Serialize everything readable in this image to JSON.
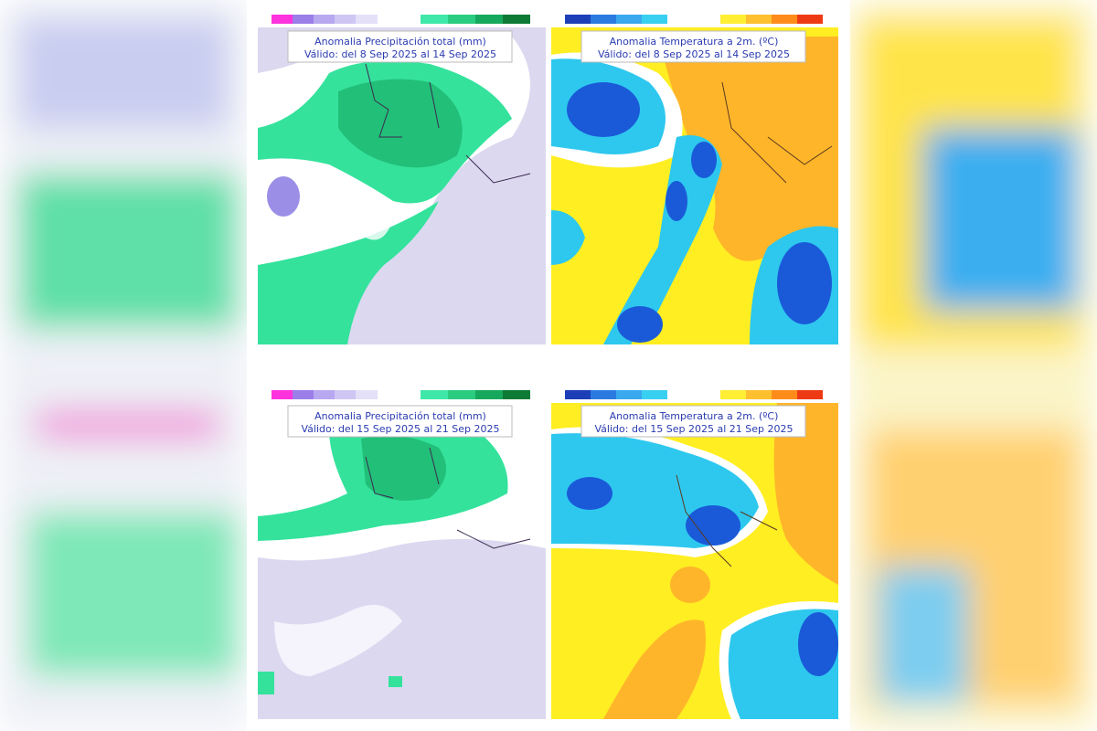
{
  "panels": [
    {
      "title": "Anomalia Precipitación total (mm)",
      "subtitle": "Válido: del 8 Sep 2025 al 14 Sep 2025"
    },
    {
      "title": "Anomalia Temperatura a 2m. (ºC)",
      "subtitle": "Válido: del 8 Sep 2025 al 14 Sep 2025"
    },
    {
      "title": "Anomalia Precipitación total (mm)",
      "subtitle": "Válido: del 15 Sep 2025 al 21 Sep 2025"
    },
    {
      "title": "Anomalia Temperatura a 2m. (ºC)",
      "subtitle": "Válido: del 15 Sep 2025 al 21 Sep 2025"
    }
  ]
}
